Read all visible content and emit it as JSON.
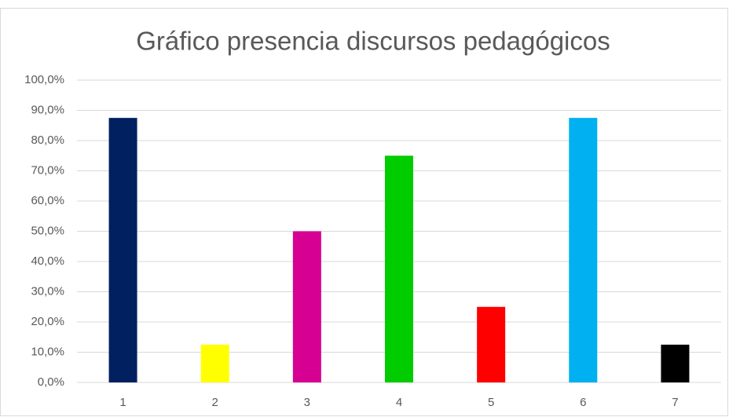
{
  "chart_data": {
    "type": "bar",
    "title": "Gráfico presencia discursos pedagógicos",
    "categories": [
      "1",
      "2",
      "3",
      "4",
      "5",
      "6",
      "7"
    ],
    "values": [
      87.5,
      12.5,
      50,
      75,
      25,
      87.5,
      12.5
    ],
    "colors": [
      "#002060",
      "#ffff00",
      "#d60093",
      "#00cc00",
      "#ff0000",
      "#00b0f0",
      "#000000"
    ],
    "ylim": [
      0,
      100
    ],
    "yticks": [
      {
        "value": 0,
        "label": "0,0%"
      },
      {
        "value": 10,
        "label": "10,0%"
      },
      {
        "value": 20,
        "label": "20,0%"
      },
      {
        "value": 30,
        "label": "30,0%"
      },
      {
        "value": 40,
        "label": "40,0%"
      },
      {
        "value": 50,
        "label": "50,0%"
      },
      {
        "value": 60,
        "label": "60,0%"
      },
      {
        "value": 70,
        "label": "70,0%"
      },
      {
        "value": 80,
        "label": "80,0%"
      },
      {
        "value": 90,
        "label": "90,0%"
      },
      {
        "value": 100,
        "label": "100,0%"
      }
    ],
    "grid": true
  }
}
